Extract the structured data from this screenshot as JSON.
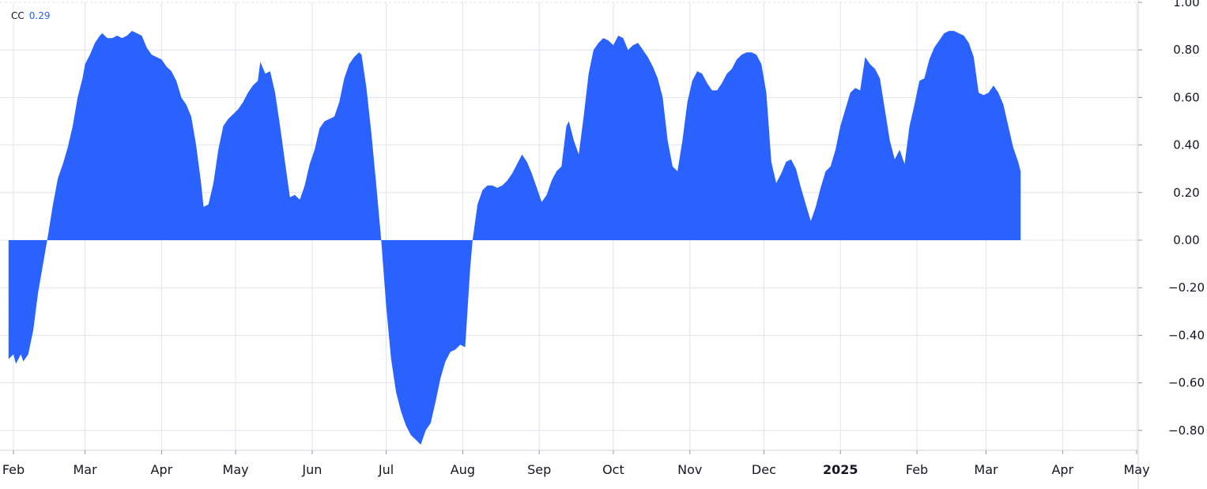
{
  "legend": {
    "label": "CC",
    "value": "0.29"
  },
  "colors": {
    "fill": "#2962ff",
    "grid": "#e0e3eb",
    "text": "#131722"
  },
  "chart_data": {
    "type": "area",
    "title": "",
    "series_name": "CC",
    "ylim": [
      -0.87,
      1.0
    ],
    "y_ticks": [
      {
        "value": 1.0,
        "label": "1.00"
      },
      {
        "value": 0.8,
        "label": "0.80"
      },
      {
        "value": 0.6,
        "label": "0.60"
      },
      {
        "value": 0.4,
        "label": "0.40"
      },
      {
        "value": 0.2,
        "label": "0.20"
      },
      {
        "value": 0.0,
        "label": "0.00"
      },
      {
        "value": -0.2,
        "label": "−0.20"
      },
      {
        "value": -0.4,
        "label": "−0.40"
      },
      {
        "value": -0.6,
        "label": "−0.60"
      },
      {
        "value": -0.8,
        "label": "−0.80"
      }
    ],
    "x_ticks": [
      {
        "date": "2024-02-01",
        "label": "Feb",
        "bold": false
      },
      {
        "date": "2024-03-01",
        "label": "Mar",
        "bold": false
      },
      {
        "date": "2024-04-01",
        "label": "Apr",
        "bold": false
      },
      {
        "date": "2024-05-01",
        "label": "May",
        "bold": false
      },
      {
        "date": "2024-06-01",
        "label": "Jun",
        "bold": false
      },
      {
        "date": "2024-07-01",
        "label": "Jul",
        "bold": false
      },
      {
        "date": "2024-08-01",
        "label": "Aug",
        "bold": false
      },
      {
        "date": "2024-09-01",
        "label": "Sep",
        "bold": false
      },
      {
        "date": "2024-10-01",
        "label": "Oct",
        "bold": false
      },
      {
        "date": "2024-11-01",
        "label": "Nov",
        "bold": false
      },
      {
        "date": "2024-12-01",
        "label": "Dec",
        "bold": false
      },
      {
        "date": "2025-01-01",
        "label": "2025",
        "bold": true
      },
      {
        "date": "2025-02-01",
        "label": "Feb",
        "bold": false
      },
      {
        "date": "2025-03-01",
        "label": "Mar",
        "bold": false
      },
      {
        "date": "2025-04-01",
        "label": "Apr",
        "bold": false
      },
      {
        "date": "2025-05-01",
        "label": "May",
        "bold": false
      }
    ],
    "points": [
      [
        "2024-01-30",
        -0.5
      ],
      [
        "2024-02-01",
        -0.48
      ],
      [
        "2024-02-02",
        -0.52
      ],
      [
        "2024-02-04",
        -0.48
      ],
      [
        "2024-02-05",
        -0.51
      ],
      [
        "2024-02-07",
        -0.48
      ],
      [
        "2024-02-09",
        -0.38
      ],
      [
        "2024-02-11",
        -0.22
      ],
      [
        "2024-02-13",
        -0.1
      ],
      [
        "2024-02-15",
        0.02
      ],
      [
        "2024-02-17",
        0.15
      ],
      [
        "2024-02-19",
        0.26
      ],
      [
        "2024-02-21",
        0.32
      ],
      [
        "2024-02-23",
        0.39
      ],
      [
        "2024-02-25",
        0.48
      ],
      [
        "2024-02-27",
        0.6
      ],
      [
        "2024-02-29",
        0.68
      ],
      [
        "2024-03-01",
        0.74
      ],
      [
        "2024-03-03",
        0.78
      ],
      [
        "2024-03-05",
        0.83
      ],
      [
        "2024-03-07",
        0.86
      ],
      [
        "2024-03-08",
        0.87
      ],
      [
        "2024-03-10",
        0.85
      ],
      [
        "2024-03-12",
        0.85
      ],
      [
        "2024-03-14",
        0.86
      ],
      [
        "2024-03-16",
        0.85
      ],
      [
        "2024-03-18",
        0.86
      ],
      [
        "2024-03-20",
        0.88
      ],
      [
        "2024-03-22",
        0.87
      ],
      [
        "2024-03-24",
        0.86
      ],
      [
        "2024-03-26",
        0.81
      ],
      [
        "2024-03-28",
        0.78
      ],
      [
        "2024-03-30",
        0.77
      ],
      [
        "2024-04-01",
        0.76
      ],
      [
        "2024-04-03",
        0.73
      ],
      [
        "2024-04-05",
        0.71
      ],
      [
        "2024-04-07",
        0.67
      ],
      [
        "2024-04-09",
        0.6
      ],
      [
        "2024-04-11",
        0.57
      ],
      [
        "2024-04-13",
        0.52
      ],
      [
        "2024-04-15",
        0.4
      ],
      [
        "2024-04-17",
        0.24
      ],
      [
        "2024-04-18",
        0.14
      ],
      [
        "2024-04-20",
        0.15
      ],
      [
        "2024-04-22",
        0.24
      ],
      [
        "2024-04-24",
        0.38
      ],
      [
        "2024-04-26",
        0.48
      ],
      [
        "2024-04-28",
        0.51
      ],
      [
        "2024-04-30",
        0.53
      ],
      [
        "2024-05-02",
        0.55
      ],
      [
        "2024-05-04",
        0.58
      ],
      [
        "2024-05-06",
        0.62
      ],
      [
        "2024-05-08",
        0.65
      ],
      [
        "2024-05-10",
        0.67
      ],
      [
        "2024-05-11",
        0.75
      ],
      [
        "2024-05-13",
        0.7
      ],
      [
        "2024-05-15",
        0.71
      ],
      [
        "2024-05-17",
        0.62
      ],
      [
        "2024-05-19",
        0.48
      ],
      [
        "2024-05-21",
        0.33
      ],
      [
        "2024-05-23",
        0.18
      ],
      [
        "2024-05-25",
        0.19
      ],
      [
        "2024-05-27",
        0.17
      ],
      [
        "2024-05-29",
        0.23
      ],
      [
        "2024-05-31",
        0.32
      ],
      [
        "2024-06-02",
        0.38
      ],
      [
        "2024-06-04",
        0.47
      ],
      [
        "2024-06-06",
        0.5
      ],
      [
        "2024-06-08",
        0.51
      ],
      [
        "2024-06-10",
        0.52
      ],
      [
        "2024-06-12",
        0.58
      ],
      [
        "2024-06-14",
        0.68
      ],
      [
        "2024-06-16",
        0.74
      ],
      [
        "2024-06-18",
        0.77
      ],
      [
        "2024-06-20",
        0.79
      ],
      [
        "2024-06-21",
        0.78
      ],
      [
        "2024-06-23",
        0.64
      ],
      [
        "2024-06-25",
        0.45
      ],
      [
        "2024-06-27",
        0.23
      ],
      [
        "2024-06-29",
        0.0
      ],
      [
        "2024-07-01",
        -0.28
      ],
      [
        "2024-07-03",
        -0.5
      ],
      [
        "2024-07-05",
        -0.64
      ],
      [
        "2024-07-07",
        -0.72
      ],
      [
        "2024-07-09",
        -0.78
      ],
      [
        "2024-07-11",
        -0.82
      ],
      [
        "2024-07-13",
        -0.84
      ],
      [
        "2024-07-15",
        -0.86
      ],
      [
        "2024-07-17",
        -0.8
      ],
      [
        "2024-07-19",
        -0.77
      ],
      [
        "2024-07-21",
        -0.68
      ],
      [
        "2024-07-23",
        -0.58
      ],
      [
        "2024-07-25",
        -0.51
      ],
      [
        "2024-07-27",
        -0.47
      ],
      [
        "2024-07-29",
        -0.46
      ],
      [
        "2024-07-31",
        -0.44
      ],
      [
        "2024-08-02",
        -0.45
      ],
      [
        "2024-08-04",
        -0.12
      ],
      [
        "2024-08-05",
        0.0
      ],
      [
        "2024-08-07",
        0.15
      ],
      [
        "2024-08-09",
        0.21
      ],
      [
        "2024-08-11",
        0.23
      ],
      [
        "2024-08-13",
        0.23
      ],
      [
        "2024-08-15",
        0.22
      ],
      [
        "2024-08-17",
        0.23
      ],
      [
        "2024-08-19",
        0.25
      ],
      [
        "2024-08-21",
        0.28
      ],
      [
        "2024-08-23",
        0.32
      ],
      [
        "2024-08-25",
        0.36
      ],
      [
        "2024-08-27",
        0.33
      ],
      [
        "2024-08-29",
        0.28
      ],
      [
        "2024-08-31",
        0.22
      ],
      [
        "2024-09-02",
        0.16
      ],
      [
        "2024-09-04",
        0.19
      ],
      [
        "2024-09-06",
        0.25
      ],
      [
        "2024-09-08",
        0.29
      ],
      [
        "2024-09-10",
        0.31
      ],
      [
        "2024-09-12",
        0.48
      ],
      [
        "2024-09-13",
        0.5
      ],
      [
        "2024-09-15",
        0.42
      ],
      [
        "2024-09-17",
        0.36
      ],
      [
        "2024-09-19",
        0.52
      ],
      [
        "2024-09-21",
        0.7
      ],
      [
        "2024-09-23",
        0.8
      ],
      [
        "2024-09-25",
        0.83
      ],
      [
        "2024-09-27",
        0.85
      ],
      [
        "2024-09-29",
        0.84
      ],
      [
        "2024-10-01",
        0.82
      ],
      [
        "2024-10-03",
        0.86
      ],
      [
        "2024-10-05",
        0.85
      ],
      [
        "2024-10-07",
        0.8
      ],
      [
        "2024-10-09",
        0.82
      ],
      [
        "2024-10-11",
        0.83
      ],
      [
        "2024-10-13",
        0.8
      ],
      [
        "2024-10-15",
        0.77
      ],
      [
        "2024-10-17",
        0.73
      ],
      [
        "2024-10-19",
        0.68
      ],
      [
        "2024-10-21",
        0.6
      ],
      [
        "2024-10-23",
        0.42
      ],
      [
        "2024-10-25",
        0.31
      ],
      [
        "2024-10-27",
        0.29
      ],
      [
        "2024-10-29",
        0.42
      ],
      [
        "2024-10-31",
        0.58
      ],
      [
        "2024-11-02",
        0.67
      ],
      [
        "2024-11-04",
        0.71
      ],
      [
        "2024-11-06",
        0.7
      ],
      [
        "2024-11-08",
        0.66
      ],
      [
        "2024-11-10",
        0.63
      ],
      [
        "2024-11-12",
        0.63
      ],
      [
        "2024-11-14",
        0.66
      ],
      [
        "2024-11-16",
        0.7
      ],
      [
        "2024-11-18",
        0.72
      ],
      [
        "2024-11-20",
        0.76
      ],
      [
        "2024-11-22",
        0.78
      ],
      [
        "2024-11-24",
        0.79
      ],
      [
        "2024-11-26",
        0.79
      ],
      [
        "2024-11-28",
        0.78
      ],
      [
        "2024-11-30",
        0.74
      ],
      [
        "2024-12-02",
        0.62
      ],
      [
        "2024-12-04",
        0.33
      ],
      [
        "2024-12-06",
        0.24
      ],
      [
        "2024-12-08",
        0.28
      ],
      [
        "2024-12-10",
        0.33
      ],
      [
        "2024-12-12",
        0.34
      ],
      [
        "2024-12-14",
        0.3
      ],
      [
        "2024-12-16",
        0.22
      ],
      [
        "2024-12-18",
        0.15
      ],
      [
        "2024-12-20",
        0.08
      ],
      [
        "2024-12-22",
        0.14
      ],
      [
        "2024-12-24",
        0.22
      ],
      [
        "2024-12-26",
        0.29
      ],
      [
        "2024-12-28",
        0.31
      ],
      [
        "2024-12-30",
        0.38
      ],
      [
        "2025-01-01",
        0.48
      ],
      [
        "2025-01-03",
        0.55
      ],
      [
        "2025-01-05",
        0.62
      ],
      [
        "2025-01-07",
        0.64
      ],
      [
        "2025-01-09",
        0.63
      ],
      [
        "2025-01-11",
        0.77
      ],
      [
        "2025-01-13",
        0.74
      ],
      [
        "2025-01-15",
        0.72
      ],
      [
        "2025-01-17",
        0.68
      ],
      [
        "2025-01-19",
        0.55
      ],
      [
        "2025-01-21",
        0.42
      ],
      [
        "2025-01-23",
        0.34
      ],
      [
        "2025-01-25",
        0.38
      ],
      [
        "2025-01-27",
        0.32
      ],
      [
        "2025-01-29",
        0.48
      ],
      [
        "2025-01-31",
        0.57
      ],
      [
        "2025-02-02",
        0.67
      ],
      [
        "2025-02-04",
        0.68
      ],
      [
        "2025-02-06",
        0.76
      ],
      [
        "2025-02-08",
        0.81
      ],
      [
        "2025-02-10",
        0.84
      ],
      [
        "2025-02-12",
        0.87
      ],
      [
        "2025-02-14",
        0.88
      ],
      [
        "2025-02-16",
        0.88
      ],
      [
        "2025-02-18",
        0.87
      ],
      [
        "2025-02-20",
        0.86
      ],
      [
        "2025-02-22",
        0.83
      ],
      [
        "2025-02-24",
        0.77
      ],
      [
        "2025-02-26",
        0.62
      ],
      [
        "2025-02-28",
        0.61
      ],
      [
        "2025-03-02",
        0.62
      ],
      [
        "2025-03-04",
        0.65
      ],
      [
        "2025-03-06",
        0.62
      ],
      [
        "2025-03-08",
        0.57
      ],
      [
        "2025-03-10",
        0.48
      ],
      [
        "2025-03-12",
        0.39
      ],
      [
        "2025-03-14",
        0.33
      ],
      [
        "2025-03-15",
        0.29
      ]
    ]
  }
}
